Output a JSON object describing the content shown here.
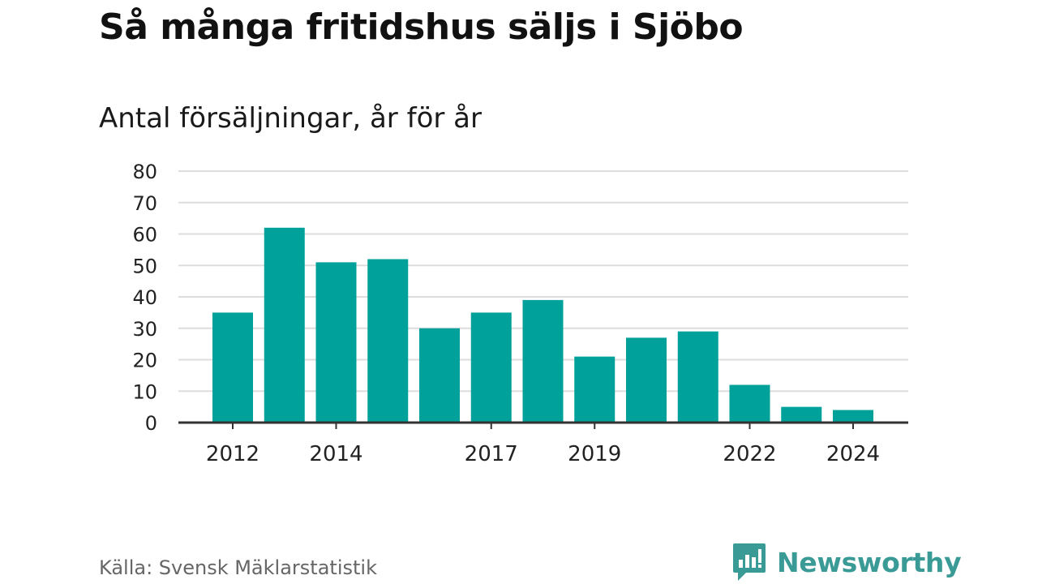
{
  "chart_data": {
    "type": "bar",
    "title": "Så många fritidshus säljs i Sjöbo",
    "subtitle": "Antal försäljningar, år för år",
    "categories": [
      "2012",
      "2013",
      "2014",
      "2015",
      "2016",
      "2017",
      "2018",
      "2019",
      "2020",
      "2021",
      "2022",
      "2023",
      "2024"
    ],
    "values": [
      35,
      62,
      51,
      52,
      30,
      35,
      39,
      21,
      27,
      29,
      12,
      5,
      4
    ],
    "x_tick_labels": [
      "2012",
      "2014",
      "2017",
      "2019",
      "2022",
      "2024"
    ],
    "y_ticks": [
      0,
      10,
      20,
      30,
      40,
      50,
      60,
      70,
      80
    ],
    "ylim": [
      0,
      80
    ],
    "xlabel": "",
    "ylabel": "",
    "grid": true,
    "legend": "none",
    "bar_color": "#00a19a",
    "grid_color": "#dddddd",
    "axis_color": "#333333"
  },
  "footer": {
    "source": "Källa: Svensk Mäklarstatistik",
    "brand": "Newsworthy",
    "brand_color": "#3a9a96"
  }
}
